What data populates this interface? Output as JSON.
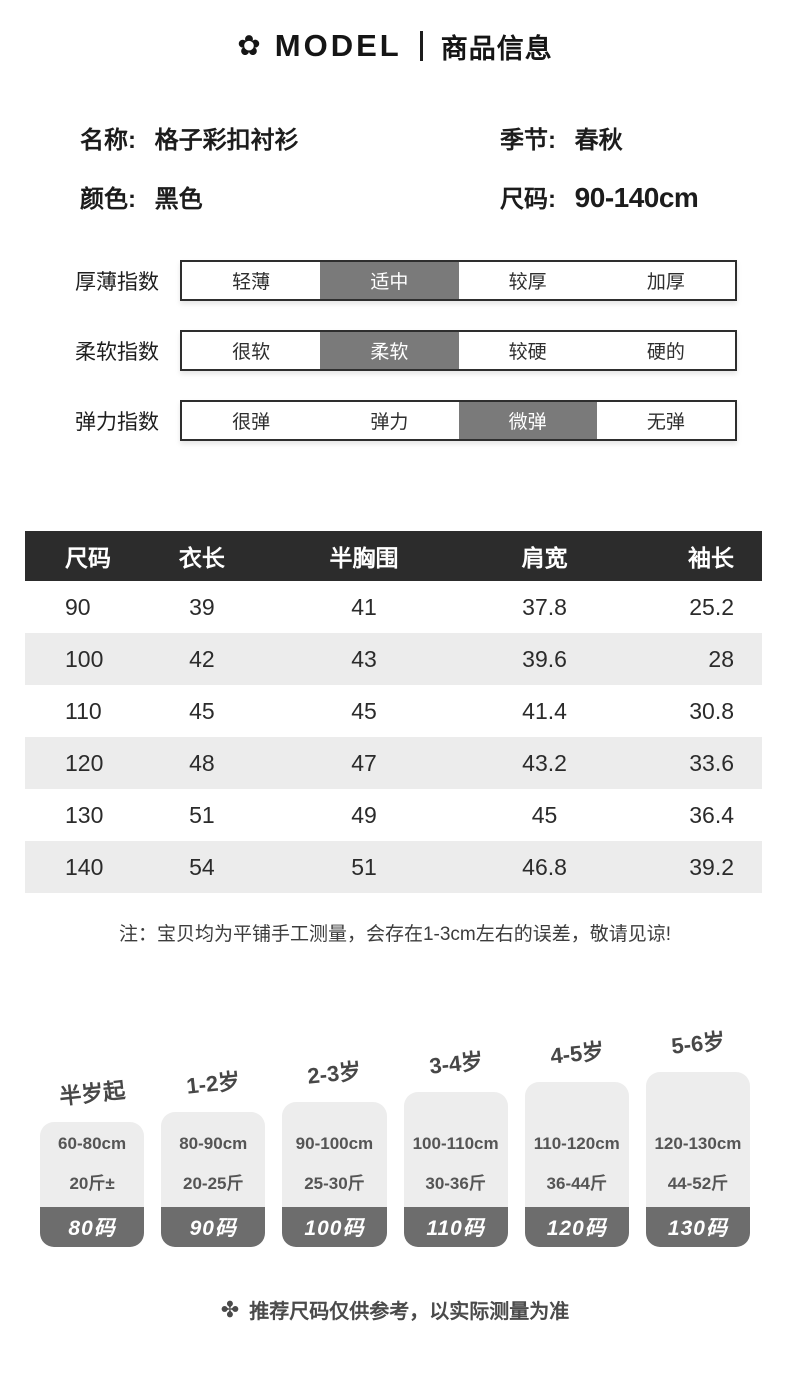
{
  "header": {
    "logo_glyph": "✿",
    "brand": "MODEL",
    "title": "商品信息"
  },
  "info": {
    "name": {
      "label": "名称:",
      "value": "格子彩扣衬衫"
    },
    "season": {
      "label": "季节:",
      "value": "春秋"
    },
    "color": {
      "label": "颜色:",
      "value": "黑色"
    },
    "size": {
      "label": "尺码:",
      "value": "90-140cm"
    }
  },
  "indicators": [
    {
      "label": "厚薄指数",
      "options": [
        "轻薄",
        "适中",
        "较厚",
        "加厚"
      ],
      "selected": 1
    },
    {
      "label": "柔软指数",
      "options": [
        "很软",
        "柔软",
        "较硬",
        "硬的"
      ],
      "selected": 1
    },
    {
      "label": "弹力指数",
      "options": [
        "很弹",
        "弹力",
        "微弹",
        "无弹"
      ],
      "selected": 2
    }
  ],
  "size_table": {
    "headers": [
      "尺码",
      "衣长",
      "半胸围",
      "肩宽",
      "袖长"
    ],
    "rows": [
      [
        "90",
        "39",
        "41",
        "37.8",
        "25.2"
      ],
      [
        "100",
        "42",
        "43",
        "39.6",
        "28"
      ],
      [
        "110",
        "45",
        "45",
        "41.4",
        "30.8"
      ],
      [
        "120",
        "48",
        "47",
        "43.2",
        "33.6"
      ],
      [
        "130",
        "51",
        "49",
        "45",
        "36.4"
      ],
      [
        "140",
        "54",
        "51",
        "46.8",
        "39.2"
      ]
    ]
  },
  "measure_note": "注：宝贝均为平铺手工测量，会存在1-3cm左右的误差，敬请见谅!",
  "size_guide": {
    "columns": [
      {
        "age": "半岁起",
        "height": "60-80cm",
        "weight": "20斤±",
        "size": "80码"
      },
      {
        "age": "1-2岁",
        "height": "80-90cm",
        "weight": "20-25斤",
        "size": "90码"
      },
      {
        "age": "2-3岁",
        "height": "90-100cm",
        "weight": "25-30斤",
        "size": "100码"
      },
      {
        "age": "3-4岁",
        "height": "100-110cm",
        "weight": "30-36斤",
        "size": "110码"
      },
      {
        "age": "4-5岁",
        "height": "110-120cm",
        "weight": "36-44斤",
        "size": "120码"
      },
      {
        "age": "5-6岁",
        "height": "120-130cm",
        "weight": "44-52斤",
        "size": "130码"
      }
    ]
  },
  "footer": {
    "icon_glyph": "✤",
    "note": "推荐尺码仅供参考，以实际测量为准"
  },
  "colors": {
    "table_header_bg": "#2c2c2c",
    "zebra_row_bg": "#ececec",
    "indicator_selected_bg": "#7a7a7a",
    "card_body_bg": "#ededed",
    "card_footer_bg": "#6d6d6d",
    "text_primary": "#1c1c1c"
  }
}
